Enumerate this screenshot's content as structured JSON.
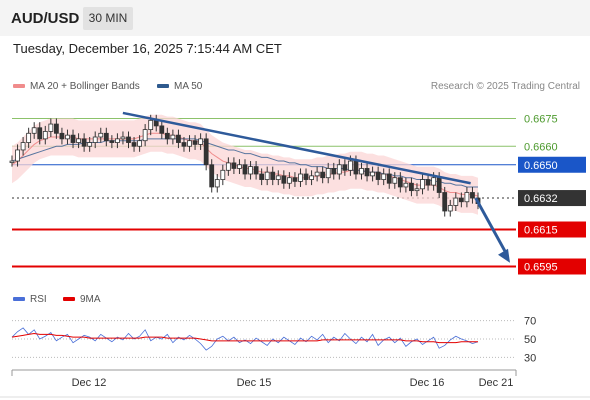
{
  "header": {
    "symbol": "AUD/USD",
    "interval": "30 MIN"
  },
  "timestamp": "Tuesday, December 16, 2025 7:15:44 AM CET",
  "credit": "Research © 2025 Trading Central",
  "legend": {
    "ma20": "MA 20 + Bollinger Bands",
    "ma50": "MA 50",
    "rsi": "RSI",
    "ma9": "9MA"
  },
  "colors": {
    "ma20": "#f08c8c",
    "ma50": "#2e5a8e",
    "band": "#fbd5d5",
    "support": "#e30000",
    "resistance_green": "#8cc26a",
    "resistance_blue": "#1a56c8",
    "current": "#333333",
    "trend": "#2e5a9a",
    "rsi": "#4a6fd8",
    "rsi_ma": "#e30000"
  },
  "chart_data": [
    {
      "type": "line",
      "title": "",
      "x_ticks": [
        "Dec 12",
        "Dec 15",
        "Dec 16",
        "Dec 21"
      ],
      "y_range": [
        0.6585,
        0.6685
      ],
      "levels": [
        {
          "value": 0.6675,
          "label": "0.6675",
          "kind": "resistance",
          "color": "#8cc26a"
        },
        {
          "value": 0.666,
          "label": "0.6660",
          "kind": "resistance",
          "color": "#8cc26a"
        },
        {
          "value": 0.665,
          "label": "0.6650",
          "kind": "pivot",
          "color": "#1a56c8"
        },
        {
          "value": 0.6632,
          "label": "0.6632",
          "kind": "current",
          "color": "#333333"
        },
        {
          "value": 0.6615,
          "label": "0.6615",
          "kind": "support",
          "color": "#e30000"
        },
        {
          "value": 0.6595,
          "label": "0.6595",
          "kind": "support",
          "color": "#e30000"
        }
      ],
      "trendline": {
        "from": [
          0.22,
          0.6678
        ],
        "to": [
          0.91,
          0.664
        ]
      },
      "projection": {
        "from": [
          0.92,
          0.6632
        ],
        "to": [
          1.0,
          0.6597
        ]
      },
      "price_path": [
        0.6652,
        0.6658,
        0.6662,
        0.6667,
        0.667,
        0.6664,
        0.6668,
        0.6672,
        0.6667,
        0.6664,
        0.6666,
        0.6662,
        0.6664,
        0.666,
        0.6662,
        0.6665,
        0.6667,
        0.6663,
        0.6662,
        0.6664,
        0.6665,
        0.6662,
        0.666,
        0.6663,
        0.6669,
        0.6674,
        0.6671,
        0.6667,
        0.6664,
        0.6666,
        0.6662,
        0.666,
        0.6663,
        0.6661,
        0.6664,
        0.665,
        0.6638,
        0.6642,
        0.6647,
        0.6651,
        0.6648,
        0.665,
        0.6645,
        0.6649,
        0.6645,
        0.6642,
        0.6646,
        0.6642,
        0.6644,
        0.664,
        0.6643,
        0.6641,
        0.6645,
        0.6642,
        0.6644,
        0.6646,
        0.6643,
        0.6648,
        0.6645,
        0.665,
        0.6647,
        0.6652,
        0.6645,
        0.6648,
        0.6644,
        0.6646,
        0.6642,
        0.6645,
        0.664,
        0.6643,
        0.6638,
        0.664,
        0.6636,
        0.6637,
        0.6642,
        0.6639,
        0.6643,
        0.6635,
        0.6625,
        0.6628,
        0.6632,
        0.663,
        0.6635,
        0.6632,
        0.6629
      ],
      "ma20_path": [
        0.665,
        0.6652,
        0.6655,
        0.6658,
        0.6661,
        0.6663,
        0.6664,
        0.6665,
        0.6665,
        0.6665,
        0.6665,
        0.6665,
        0.6664,
        0.6664,
        0.6664,
        0.6664,
        0.6664,
        0.6664,
        0.6664,
        0.6664,
        0.6664,
        0.6664,
        0.6664,
        0.6665,
        0.6666,
        0.6667,
        0.6667,
        0.6667,
        0.6666,
        0.6666,
        0.6665,
        0.6664,
        0.6663,
        0.6663,
        0.6662,
        0.6659,
        0.6656,
        0.6654,
        0.6652,
        0.6651,
        0.665,
        0.6649,
        0.6648,
        0.6648,
        0.6647,
        0.6646,
        0.6646,
        0.6645,
        0.6645,
        0.6644,
        0.6644,
        0.6643,
        0.6643,
        0.6643,
        0.6643,
        0.6644,
        0.6644,
        0.6645,
        0.6645,
        0.6646,
        0.6646,
        0.6647,
        0.6647,
        0.6647,
        0.6646,
        0.6646,
        0.6645,
        0.6645,
        0.6644,
        0.6643,
        0.6642,
        0.6641,
        0.664,
        0.6639,
        0.6639,
        0.6639,
        0.6639,
        0.6638,
        0.6636,
        0.6635,
        0.6635,
        0.6634,
        0.6634,
        0.6634,
        0.6633
      ],
      "ma50_path": [
        0.6652,
        0.6653,
        0.6654,
        0.6655,
        0.6656,
        0.6657,
        0.6658,
        0.6659,
        0.666,
        0.666,
        0.6661,
        0.6661,
        0.6661,
        0.6662,
        0.6662,
        0.6662,
        0.6662,
        0.6663,
        0.6663,
        0.6663,
        0.6663,
        0.6663,
        0.6663,
        0.6663,
        0.6664,
        0.6664,
        0.6664,
        0.6664,
        0.6664,
        0.6664,
        0.6664,
        0.6664,
        0.6664,
        0.6664,
        0.6663,
        0.6662,
        0.6661,
        0.666,
        0.6659,
        0.6658,
        0.6658,
        0.6657,
        0.6656,
        0.6656,
        0.6655,
        0.6654,
        0.6654,
        0.6653,
        0.6652,
        0.6652,
        0.6651,
        0.6651,
        0.665,
        0.665,
        0.6649,
        0.6649,
        0.6649,
        0.6648,
        0.6648,
        0.6648,
        0.6648,
        0.6647,
        0.6647,
        0.6647,
        0.6646,
        0.6646,
        0.6646,
        0.6645,
        0.6645,
        0.6644,
        0.6644,
        0.6643,
        0.6643,
        0.6642,
        0.6642,
        0.6642,
        0.6641,
        0.6641,
        0.664,
        0.664,
        0.6639,
        0.6639,
        0.6638,
        0.6638,
        0.6638
      ],
      "band_width": 0.001
    },
    {
      "type": "line",
      "title": "",
      "y_ticks": [
        "70",
        "50",
        "30"
      ],
      "y_range": [
        25,
        75
      ],
      "series": [
        {
          "name": "RSI",
          "values": [
            52,
            58,
            62,
            55,
            60,
            50,
            53,
            57,
            48,
            52,
            55,
            46,
            50,
            54,
            52,
            48,
            55,
            51,
            47,
            52,
            49,
            56,
            50,
            53,
            60,
            48,
            52,
            50,
            55,
            46,
            52,
            49,
            54,
            50,
            45,
            38,
            42,
            50,
            53,
            48,
            52,
            46,
            49,
            45,
            51,
            47,
            43,
            50,
            46,
            52,
            48,
            44,
            51,
            47,
            53,
            49,
            55,
            46,
            52,
            48,
            56,
            50,
            45,
            52,
            47,
            55,
            43,
            49,
            52,
            46,
            51,
            42,
            47,
            50,
            44,
            48,
            52,
            40,
            43,
            49,
            53,
            50,
            48,
            45,
            47
          ]
        },
        {
          "name": "9MA",
          "values": [
            52,
            53,
            54,
            55,
            56,
            55,
            55,
            55,
            54,
            54,
            53,
            52,
            52,
            52,
            51,
            51,
            51,
            51,
            51,
            51,
            51,
            51,
            51,
            51,
            52,
            52,
            52,
            52,
            51,
            51,
            51,
            51,
            51,
            51,
            50,
            49,
            48,
            48,
            48,
            48,
            48,
            48,
            48,
            48,
            48,
            48,
            48,
            48,
            48,
            48,
            48,
            48,
            48,
            48,
            48,
            48,
            49,
            49,
            49,
            49,
            49,
            49,
            49,
            49,
            49,
            49,
            49,
            49,
            49,
            49,
            49,
            48,
            48,
            48,
            47,
            47,
            47,
            46,
            46,
            46,
            46,
            47,
            47,
            47,
            47
          ]
        }
      ]
    }
  ]
}
